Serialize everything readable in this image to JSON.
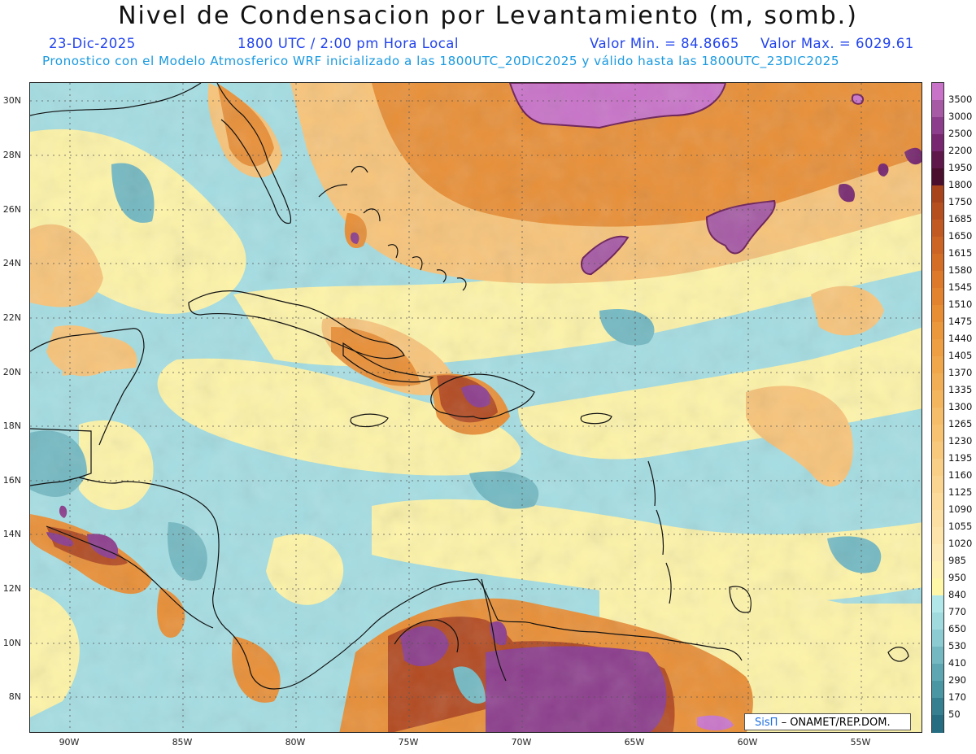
{
  "header": {
    "title": "Nivel de Condensacion por Levantamiento (m, somb.)",
    "date": "23-Dic-2025",
    "time": "1800 UTC / 2:00 pm Hora Local",
    "min_value": "Valor Min. = 84.8665",
    "max_value": "Valor Max. = 6029.61",
    "model_line": "Pronostico con el Modelo Atmosferico WRF inicializado a las 1800UTC_20DIC2025 y válido hasta las  1800UTC_23DIC2025"
  },
  "axes": {
    "lat_labels": [
      "30N",
      "28N",
      "26N",
      "24N",
      "22N",
      "20N",
      "18N",
      "16N",
      "14N",
      "12N",
      "10N",
      "8N"
    ],
    "lon_labels": [
      "90W",
      "85W",
      "80W",
      "75W",
      "70W",
      "65W",
      "60W",
      "55W"
    ]
  },
  "colorbar": {
    "labels": [
      "3500",
      "3000",
      "2500",
      "2200",
      "1950",
      "1800",
      "1750",
      "1685",
      "1650",
      "1615",
      "1580",
      "1545",
      "1510",
      "1475",
      "1440",
      "1405",
      "1370",
      "1335",
      "1300",
      "1265",
      "1230",
      "1195",
      "1160",
      "1125",
      "1090",
      "1055",
      "1020",
      "985",
      "950",
      "840",
      "770",
      "650",
      "530",
      "410",
      "290",
      "170",
      "50"
    ],
    "colors": [
      "#c873c8",
      "#a65aa5",
      "#8c3e8c",
      "#77276f",
      "#5e1849",
      "#4a0f2d",
      "#a8441c",
      "#b64f20",
      "#c15a22",
      "#cb6424",
      "#d46e27",
      "#dc792b",
      "#e2842f",
      "#e78e35",
      "#eb983c",
      "#ee9f43",
      "#f0a74c",
      "#f2ae55",
      "#f4b55f",
      "#f5bc69",
      "#f7c373",
      "#f8c97d",
      "#f9cf87",
      "#fad591",
      "#fbda9a",
      "#fcdfa3",
      "#fde4ab",
      "#fde9b3",
      "#fdf0b0",
      "#fff7a8",
      "#b2e7ea",
      "#a0d9de",
      "#8ccbd2",
      "#74b9c2",
      "#5ea7b2",
      "#4a96a3",
      "#357f90",
      "#266d82"
    ]
  },
  "credit": {
    "logo": "SisΠ",
    "text": "– ONAMET/REP.DOM."
  }
}
